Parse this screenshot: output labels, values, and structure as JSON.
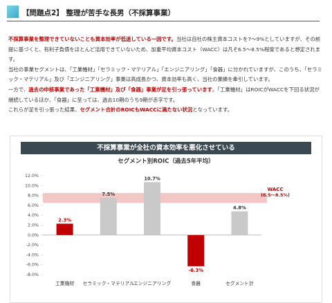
{
  "header": {
    "title": "【問題点2】 整理が苦手な長男（不採算事業）"
  },
  "paragraphs": [
    [
      {
        "text": "不採算事業を整理できていないことも資本効率が低迷している一因です。",
        "style": "red"
      },
      {
        "text": "当社は自社の株主資本コストを7～9%としていますが、その前提に基づくと、有利子負債をほとんど活用できていないため、加重平均資本コスト（WACC）は凡そ6.5～8.5%程度であると想定されます。"
      }
    ],
    [
      {
        "text": "当社の事業セグメントは、「工業機材」「セラミック・マテリアル」「エンジニアリング」「食器」に分かれていますが、このうち、「セラミック・マテリアル」及び「エンジニアリング」事業は高成長かつ、資本効率も高く、当社の業績を牽引しています。"
      }
    ],
    [
      {
        "text": "一方で、"
      },
      {
        "text": "過去の中核事業であった「工業機材」及び「食器」事業が足を引っ張っています",
        "style": "red"
      },
      {
        "text": "。「工業機材」はROICがWACCを下回る状況が継続しているほか、「食器」に至っては、過去10期のうち9期が赤字です。"
      }
    ],
    [
      {
        "text": "これらが足を引っ張った結果、"
      },
      {
        "text": "セグメント合計のROICもWACCに満たない状況",
        "style": "red"
      },
      {
        "text": "となっています。"
      }
    ]
  ],
  "chart_data": {
    "type": "bar",
    "title": "不採算事業が全社の資本効率を悪化させている",
    "subtitle": "セグメント別ROIC（過去5年平均）",
    "categories": [
      "工業機材",
      "セラミック・マテリアル",
      "エンジニアリング",
      "食器",
      "セグメント計"
    ],
    "values": [
      2.3,
      7.5,
      10.7,
      -6.3,
      4.8
    ],
    "value_labels": [
      "2.3%",
      "7.5%",
      "10.7%",
      "-6.3%",
      "4.8%"
    ],
    "colors": [
      "#c00000",
      "#c9c9c9",
      "#c9c9c9",
      "#c00000",
      "#c9c9c9"
    ],
    "ylim": [
      -8,
      12
    ],
    "yticks": [
      {
        "value": -8,
        "label": "-8.0%"
      },
      {
        "value": -6,
        "label": "-6.0%"
      },
      {
        "value": -4,
        "label": "-4.0%"
      },
      {
        "value": -2,
        "label": "-2.0%"
      },
      {
        "value": 0,
        "label": "0.0%"
      },
      {
        "value": 2,
        "label": "2.0%"
      },
      {
        "value": 4,
        "label": "4.0%"
      },
      {
        "value": 6,
        "label": "6.0%"
      },
      {
        "value": 8,
        "label": "8.0%"
      },
      {
        "value": 10,
        "label": "10.0%"
      },
      {
        "value": 12,
        "label": "12.0%"
      }
    ],
    "band": {
      "range": [
        6.5,
        8.5
      ],
      "label": "WACC",
      "sublabel": "(6.5～8.5%)",
      "color": "#f4c7c7"
    }
  }
}
